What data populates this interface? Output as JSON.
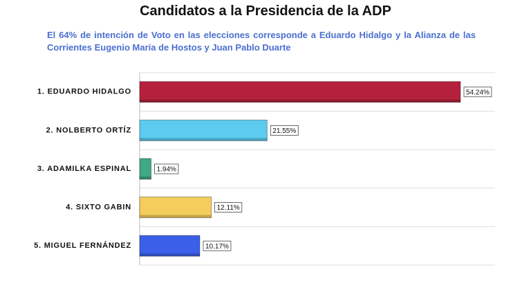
{
  "chart_data": {
    "type": "bar",
    "orientation": "horizontal",
    "title": "Candidatos a la Presidencia de la ADP",
    "subtitle": "El 64% de intención de Voto en las elecciones corresponde a Eduardo Hidalgo y la Alianza de las Corrientes Eugenio María de Hostos y Juan Pablo Duarte",
    "categories": [
      "1. EDUARDO HIDALGO",
      "2. NOLBERTO ORTÍZ",
      "3. ADAMILKA ESPINAL",
      "4. SIXTO GABIN",
      "5. MIGUEL FERNÁNDEZ"
    ],
    "values": [
      54.24,
      21.55,
      1.94,
      12.11,
      10.17
    ],
    "value_labels": [
      "54.24%",
      "21.55%",
      "1.94%",
      "12.11%",
      "10.17%"
    ],
    "colors": [
      "#b5213c",
      "#5ccbf0",
      "#3fa886",
      "#f5cd5a",
      "#3b5fe8"
    ]
  }
}
